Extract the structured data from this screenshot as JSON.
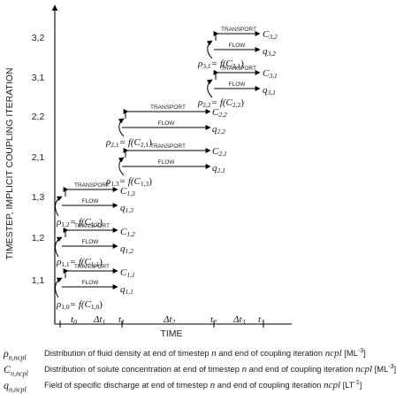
{
  "y_axis_title": "TIMESTEP, IMPLICIT COUPLING ITERATION",
  "x_axis_title": "TIME",
  "y_ticks": [
    "1,1",
    "1,2",
    "1,3",
    "2,1",
    "2,2",
    "3,1",
    "3,2"
  ],
  "x_ticks": [
    {
      "sym": "t",
      "sub": "0"
    },
    {
      "sym": "Δt",
      "sub": "1"
    },
    {
      "sym": "t",
      "sub": "1"
    },
    {
      "sym": "Δt",
      "sub": "2"
    },
    {
      "sym": "t",
      "sub": "2"
    },
    {
      "sym": "Δt",
      "sub": "3"
    },
    {
      "sym": "t",
      "sub": "3"
    }
  ],
  "transport_label": "TRANSPORT",
  "flow_label": "FLOW",
  "iterations": [
    {
      "density": "ρ",
      "density_sub": "1,0",
      "func": "= f(C",
      "func_sub": "1,0",
      "q": "q",
      "q_sub": "1,1",
      "c": "C",
      "c_sub": "1,1"
    },
    {
      "density": "ρ",
      "density_sub": "1,1",
      "func": "= f(C",
      "func_sub": "1,1",
      "q": "q",
      "q_sub": "1,2",
      "c": "C",
      "c_sub": "1,2"
    },
    {
      "density": "ρ",
      "density_sub": "1,2",
      "func": "= f(C",
      "func_sub": "1,2",
      "q": "q",
      "q_sub": "1,3",
      "c": "C",
      "c_sub": "1,3"
    },
    {
      "density": "ρ",
      "density_sub": "1,3",
      "func": "= f(C",
      "func_sub": "1,3",
      "q": "q",
      "q_sub": "2,1",
      "c": "C",
      "c_sub": "2,1"
    },
    {
      "density": "ρ",
      "density_sub": "2,1",
      "func": "= f(C",
      "func_sub": "2,1",
      "q": "q",
      "q_sub": "2,2",
      "c": "C",
      "c_sub": "2,2"
    },
    {
      "density": "ρ",
      "density_sub": "2,2",
      "func": "= f(C",
      "func_sub": "2,2",
      "q": "q",
      "q_sub": "3,1",
      "c": "C",
      "c_sub": "3,1"
    },
    {
      "density": "ρ",
      "density_sub": "3,1",
      "func": "= f(C",
      "func_sub": "3,1",
      "q": "q",
      "q_sub": "3,2",
      "c": "C",
      "c_sub": "3,2"
    }
  ],
  "legend": [
    {
      "symbol": "ρ",
      "sub": "n,ncpl",
      "pre": "Distribution of fluid density at end of timestep ",
      "n": "n",
      "mid": " and end of coupling iteration ",
      "ncpl": "ncpl",
      "post": " [ML",
      "exp": "-3",
      "close": "]"
    },
    {
      "symbol": "C",
      "sub": "n,ncpl",
      "pre": "Distribution of solute concentration at end of timestep ",
      "n": "n",
      "mid": " and end of coupling iteration ",
      "ncpl": "ncpl",
      "post": " [ML",
      "exp": "-3",
      "close": "]"
    },
    {
      "symbol": "q",
      "sub": "n,ncpl",
      "pre": "Field of specific discharge at end of timestep ",
      "n": "n",
      "mid": " and end of coupling iteration ",
      "ncpl": "ncpl",
      "post": " [LT",
      "exp": "-1",
      "close": "]"
    }
  ]
}
